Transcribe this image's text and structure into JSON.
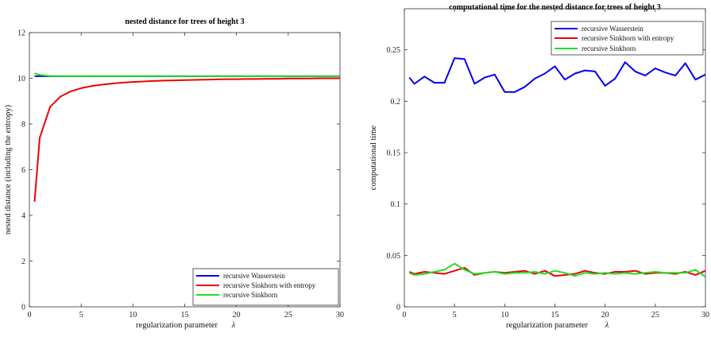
{
  "chart_data": [
    {
      "type": "line",
      "title": "nested distance for trees of height 3",
      "xlabel": "regularization parameter",
      "xlabel_symbol": "λ",
      "ylabel": "nested distance (including the entropy)",
      "xlim": [
        0,
        30
      ],
      "ylim": [
        0,
        12
      ],
      "xticks": [
        0,
        5,
        10,
        15,
        20,
        25,
        30
      ],
      "yticks": [
        0,
        2,
        4,
        6,
        8,
        10,
        12
      ],
      "grid": false,
      "legend_position": "bottom-right",
      "x": [
        0.5,
        1,
        2,
        3,
        4,
        5,
        6,
        7,
        8,
        9,
        10,
        11,
        12,
        13,
        14,
        15,
        16,
        17,
        18,
        19,
        20,
        21,
        22,
        23,
        24,
        25,
        26,
        27,
        28,
        29,
        30
      ],
      "series": [
        {
          "name": "recursive Wasserstein",
          "color": "#0000ee",
          "values": [
            10.09,
            10.09,
            10.09,
            10.09,
            10.09,
            10.09,
            10.09,
            10.09,
            10.09,
            10.09,
            10.09,
            10.09,
            10.09,
            10.09,
            10.09,
            10.09,
            10.09,
            10.09,
            10.09,
            10.09,
            10.09,
            10.09,
            10.09,
            10.09,
            10.09,
            10.09,
            10.09,
            10.09,
            10.09,
            10.09,
            10.09
          ]
        },
        {
          "name": "recursive Sinkhorn with entropy",
          "color": "#ee0000",
          "values": [
            4.6,
            7.4,
            8.75,
            9.2,
            9.43,
            9.57,
            9.66,
            9.72,
            9.77,
            9.81,
            9.84,
            9.86,
            9.88,
            9.9,
            9.91,
            9.92,
            9.93,
            9.94,
            9.95,
            9.96,
            9.96,
            9.97,
            9.97,
            9.98,
            9.98,
            9.99,
            9.99,
            9.99,
            10.0,
            10.0,
            10.0
          ]
        },
        {
          "name": "recursive Sinkhorn",
          "color": "#22dd22",
          "values": [
            10.22,
            10.15,
            10.1,
            10.09,
            10.09,
            10.09,
            10.09,
            10.09,
            10.09,
            10.09,
            10.09,
            10.09,
            10.09,
            10.09,
            10.09,
            10.09,
            10.09,
            10.09,
            10.09,
            10.09,
            10.09,
            10.09,
            10.09,
            10.09,
            10.09,
            10.09,
            10.09,
            10.09,
            10.09,
            10.09,
            10.09
          ]
        }
      ]
    },
    {
      "type": "line",
      "title": "computational time for the nested distance for trees of height 3",
      "xlabel": "regularization parameter",
      "xlabel_symbol": "λ",
      "ylabel": "computational time",
      "xlim": [
        0,
        30
      ],
      "ylim": [
        0,
        0.29
      ],
      "xticks": [
        0,
        5,
        10,
        15,
        20,
        25,
        30
      ],
      "yticks": [
        0,
        0.05,
        0.1,
        0.15,
        0.2,
        0.25
      ],
      "ytick_labels": [
        "0",
        "0.05",
        "0.1",
        "0.15",
        "0.2",
        "0.25"
      ],
      "grid": false,
      "legend_position": "top-right",
      "x": [
        0.5,
        1,
        2,
        3,
        4,
        5,
        6,
        7,
        8,
        9,
        10,
        11,
        12,
        13,
        14,
        15,
        16,
        17,
        18,
        19,
        20,
        21,
        22,
        23,
        24,
        25,
        26,
        27,
        28,
        29,
        30
      ],
      "series": [
        {
          "name": "recursive Wasserstein",
          "color": "#0000ee",
          "values": [
            0.223,
            0.217,
            0.224,
            0.218,
            0.218,
            0.242,
            0.241,
            0.217,
            0.223,
            0.226,
            0.209,
            0.209,
            0.214,
            0.222,
            0.227,
            0.234,
            0.221,
            0.227,
            0.23,
            0.229,
            0.215,
            0.222,
            0.238,
            0.229,
            0.225,
            0.232,
            0.228,
            0.225,
            0.237,
            0.221,
            0.226
          ]
        },
        {
          "name": "recursive Sinkhorn with entropy",
          "color": "#ee0000",
          "values": [
            0.034,
            0.032,
            0.034,
            0.033,
            0.032,
            0.035,
            0.038,
            0.031,
            0.033,
            0.034,
            0.033,
            0.034,
            0.035,
            0.032,
            0.035,
            0.03,
            0.031,
            0.032,
            0.035,
            0.033,
            0.032,
            0.034,
            0.034,
            0.035,
            0.032,
            0.033,
            0.033,
            0.032,
            0.034,
            0.031,
            0.035
          ]
        },
        {
          "name": "recursive Sinkhorn",
          "color": "#22dd22",
          "values": [
            0.033,
            0.031,
            0.032,
            0.034,
            0.036,
            0.042,
            0.036,
            0.032,
            0.033,
            0.034,
            0.032,
            0.033,
            0.033,
            0.034,
            0.032,
            0.035,
            0.033,
            0.03,
            0.033,
            0.032,
            0.033,
            0.032,
            0.033,
            0.032,
            0.033,
            0.034,
            0.033,
            0.033,
            0.033,
            0.036,
            0.029
          ]
        }
      ]
    }
  ]
}
